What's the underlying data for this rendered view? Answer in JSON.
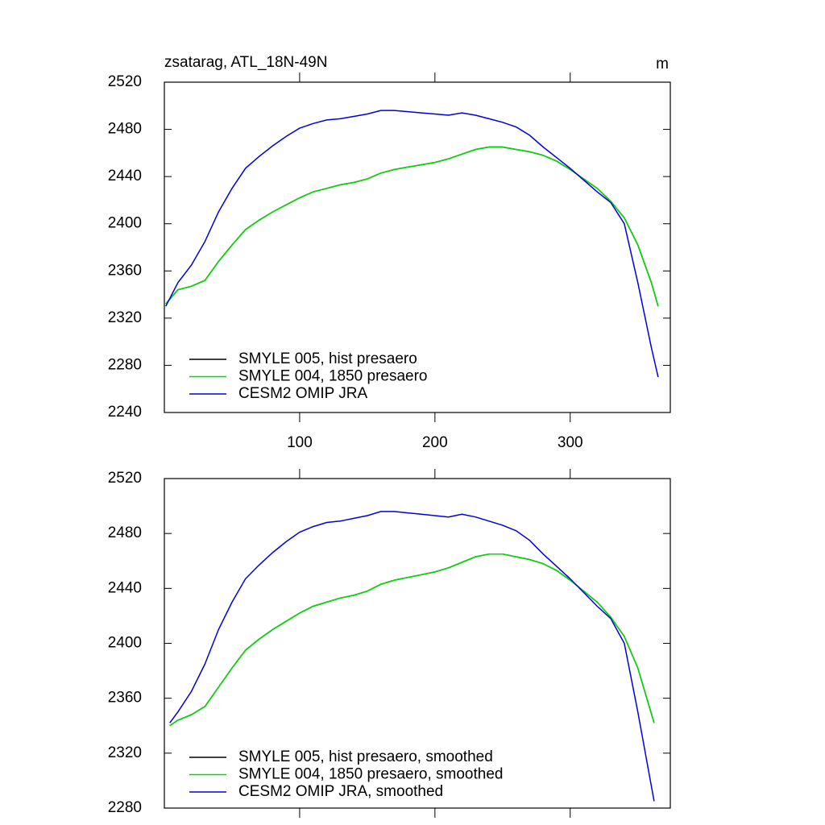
{
  "chart_data": [
    {
      "type": "line",
      "title": "zsatarag, ATL_18N-49N",
      "units": "m",
      "x": [
        1,
        10,
        20,
        30,
        40,
        50,
        60,
        70,
        80,
        90,
        100,
        110,
        120,
        130,
        140,
        150,
        160,
        170,
        180,
        190,
        200,
        210,
        220,
        230,
        240,
        250,
        260,
        270,
        280,
        290,
        300,
        310,
        320,
        330,
        340,
        350,
        360,
        365
      ],
      "series": [
        {
          "name": "SMYLE 005, hist presaero",
          "color": "#000000",
          "values": [
            2332,
            2344,
            2347,
            2352,
            2368,
            2382,
            2395,
            2403,
            2410,
            2416,
            2422,
            2427,
            2430,
            2433,
            2435,
            2438,
            2443,
            2446,
            2448,
            2450,
            2452,
            2455,
            2459,
            2463,
            2465,
            2465,
            2463,
            2461,
            2458,
            2453,
            2446,
            2438,
            2430,
            2419,
            2405,
            2382,
            2350,
            2330
          ]
        },
        {
          "name": "SMYLE 004, 1850 presaero",
          "color": "#00dd00",
          "values": [
            2332,
            2344,
            2347,
            2352,
            2368,
            2382,
            2395,
            2403,
            2410,
            2416,
            2422,
            2427,
            2430,
            2433,
            2435,
            2438,
            2443,
            2446,
            2448,
            2450,
            2452,
            2455,
            2459,
            2463,
            2465,
            2465,
            2463,
            2461,
            2458,
            2453,
            2446,
            2438,
            2430,
            2419,
            2405,
            2382,
            2350,
            2330
          ]
        },
        {
          "name": "CESM2 OMIP JRA",
          "color": "#0000dd",
          "values": [
            2330,
            2350,
            2365,
            2385,
            2410,
            2430,
            2447,
            2457,
            2466,
            2474,
            2481,
            2485,
            2488,
            2489,
            2491,
            2493,
            2496,
            2496,
            2495,
            2494,
            2493,
            2492,
            2494,
            2492,
            2489,
            2486,
            2482,
            2475,
            2465,
            2456,
            2447,
            2437,
            2427,
            2418,
            2400,
            2350,
            2295,
            2270
          ]
        }
      ],
      "xlim": [
        0,
        374
      ],
      "xticks": [
        100,
        200,
        300
      ],
      "xtick_labels": true,
      "ylim": [
        2240,
        2520
      ],
      "yticks": [
        2240,
        2280,
        2320,
        2360,
        2400,
        2440,
        2480,
        2520
      ]
    },
    {
      "type": "line",
      "x": [
        4,
        10,
        20,
        30,
        40,
        50,
        60,
        70,
        80,
        90,
        100,
        110,
        120,
        130,
        140,
        150,
        160,
        170,
        180,
        190,
        200,
        210,
        220,
        230,
        240,
        250,
        260,
        270,
        280,
        290,
        300,
        310,
        320,
        330,
        340,
        350,
        362
      ],
      "series": [
        {
          "name": "SMYLE 005, hist presaero, smoothed",
          "color": "#000000",
          "values": [
            2340,
            2344,
            2348,
            2354,
            2368,
            2382,
            2395,
            2403,
            2410,
            2416,
            2422,
            2427,
            2430,
            2433,
            2435,
            2438,
            2443,
            2446,
            2448,
            2450,
            2452,
            2455,
            2459,
            2463,
            2465,
            2465,
            2463,
            2461,
            2458,
            2453,
            2446,
            2438,
            2430,
            2419,
            2405,
            2382,
            2342
          ]
        },
        {
          "name": "SMYLE 004, 1850 presaero, smoothed",
          "color": "#00dd00",
          "values": [
            2340,
            2344,
            2348,
            2354,
            2368,
            2382,
            2395,
            2403,
            2410,
            2416,
            2422,
            2427,
            2430,
            2433,
            2435,
            2438,
            2443,
            2446,
            2448,
            2450,
            2452,
            2455,
            2459,
            2463,
            2465,
            2465,
            2463,
            2461,
            2458,
            2453,
            2446,
            2438,
            2430,
            2419,
            2405,
            2382,
            2342
          ]
        },
        {
          "name": "CESM2 OMIP JRA, smoothed",
          "color": "#0000dd",
          "values": [
            2342,
            2350,
            2365,
            2385,
            2410,
            2430,
            2447,
            2457,
            2466,
            2474,
            2481,
            2485,
            2488,
            2489,
            2491,
            2493,
            2496,
            2496,
            2495,
            2494,
            2493,
            2492,
            2494,
            2492,
            2489,
            2486,
            2482,
            2475,
            2465,
            2456,
            2447,
            2437,
            2427,
            2418,
            2400,
            2350,
            2285
          ]
        }
      ],
      "xlim": [
        0,
        374
      ],
      "xticks": [
        100,
        200,
        300
      ],
      "xtick_labels": false,
      "ylim": [
        2280,
        2520
      ],
      "yticks": [
        2280,
        2320,
        2360,
        2400,
        2440,
        2480,
        2520
      ]
    }
  ]
}
